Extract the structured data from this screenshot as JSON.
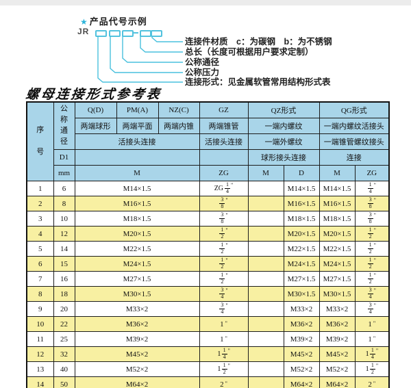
{
  "diagram": {
    "star": "★",
    "title": "产品代号示例",
    "prefix": "JR",
    "labels": [
      "连接件材质　c：为碳钢　b：为不锈钢",
      "总长（长度可根据用户要求定制）",
      "公称通径",
      "公称压力",
      "连接形式：见金属软管常用结构形式表"
    ]
  },
  "table_title": "螺母连接形式参考表",
  "colors": {
    "header_bg": "#a9d5e9",
    "row_alt_bg": "#f8f0a2",
    "accent_cyan": "#49c0dd",
    "border": "#1b1b1b"
  },
  "table": {
    "header": {
      "seq": "序号",
      "nominal_diameter": "公称通径",
      "d1": "D1",
      "mm": "mm",
      "q": "Q(D)",
      "pm": "PM(A)",
      "nz": "NZ(C)",
      "gz": "GZ",
      "qz": "QZ形式",
      "qg": "QG形式",
      "q_desc": "两端球形",
      "pm_desc": "两端平面",
      "nz_desc": "两端内锥",
      "gz_desc": "两端锥管",
      "qz_desc1": "一端内螺纹",
      "qg_desc1": "一端内螺纹活接头",
      "union_conn": "活接头连接",
      "gz_conn": "活接头连接",
      "qz_desc2": "一端外螺纹",
      "qg_desc2": "一端锥管螺纹接头",
      "qz_conn": "球形接头连接",
      "qg_conn": "连接",
      "m1": "M",
      "zg1": "ZG",
      "m2": "M",
      "d": "D",
      "m3": "M",
      "zg2": "ZG"
    },
    "rows": [
      {
        "no": "1",
        "mm": "6",
        "m": "M14×1.5",
        "gz": {
          "prefix": "ZG",
          "num": "1",
          "den": "4"
        },
        "qz_m": "",
        "qz_d": "M14×1.5",
        "qg_m": "M14×1.5",
        "qg_zg": {
          "num": "1",
          "den": "4"
        }
      },
      {
        "no": "2",
        "mm": "8",
        "m": "M16×1.5",
        "gz": {
          "num": "3",
          "den": "8"
        },
        "qz_m": "",
        "qz_d": "M16×1.5",
        "qg_m": "M16×1.5",
        "qg_zg": {
          "num": "3",
          "den": "8"
        }
      },
      {
        "no": "3",
        "mm": "10",
        "m": "M18×1.5",
        "gz": {
          "num": "3",
          "den": "8"
        },
        "qz_m": "",
        "qz_d": "M18×1.5",
        "qg_m": "M18×1.5",
        "qg_zg": {
          "num": "3",
          "den": "8"
        }
      },
      {
        "no": "4",
        "mm": "12",
        "m": "M20×1.5",
        "gz": {
          "num": "1",
          "den": "2"
        },
        "qz_m": "",
        "qz_d": "M20×1.5",
        "qg_m": "M20×1.5",
        "qg_zg": {
          "num": "1",
          "den": "2"
        }
      },
      {
        "no": "5",
        "mm": "14",
        "m": "M22×1.5",
        "gz": {
          "num": "1",
          "den": "2"
        },
        "qz_m": "",
        "qz_d": "M22×1.5",
        "qg_m": "M22×1.5",
        "qg_zg": {
          "num": "1",
          "den": "2"
        }
      },
      {
        "no": "6",
        "mm": "15",
        "m": "M24×1.5",
        "gz": {
          "num": "1",
          "den": "2"
        },
        "qz_m": "",
        "qz_d": "M24×1.5",
        "qg_m": "M24×1.5",
        "qg_zg": {
          "num": "1",
          "den": "2"
        }
      },
      {
        "no": "7",
        "mm": "16",
        "m": "M27×1.5",
        "gz": {
          "num": "1",
          "den": "2"
        },
        "qz_m": "",
        "qz_d": "M27×1.5",
        "qg_m": "M27×1.5",
        "qg_zg": {
          "num": "1",
          "den": "2"
        }
      },
      {
        "no": "8",
        "mm": "18",
        "m": "M30×1.5",
        "gz": {
          "num": "3",
          "den": "4"
        },
        "qz_m": "",
        "qz_d": "M30×1.5",
        "qg_m": "M30×1.5",
        "qg_zg": {
          "num": "3",
          "den": "4"
        }
      },
      {
        "no": "9",
        "mm": "20",
        "m": "M33×2",
        "gz": {
          "num": "3",
          "den": "4"
        },
        "qz_m": "",
        "qz_d": "M33×2",
        "qg_m": "M33×2",
        "qg_zg": {
          "num": "3",
          "den": "4"
        }
      },
      {
        "no": "10",
        "mm": "22",
        "m": "M36×2",
        "gz": {
          "whole": "1"
        },
        "qz_m": "",
        "qz_d": "M36×2",
        "qg_m": "M36×2",
        "qg_zg": {
          "whole": "1"
        }
      },
      {
        "no": "11",
        "mm": "25",
        "m": "M39×2",
        "gz": {
          "whole": "1"
        },
        "qz_m": "",
        "qz_d": "M39×2",
        "qg_m": "M39×2",
        "qg_zg": {
          "whole": "1"
        }
      },
      {
        "no": "12",
        "mm": "32",
        "m": "M45×2",
        "gz": {
          "whole": "1",
          "num": "1",
          "den": "4"
        },
        "qz_m": "",
        "qz_d": "M45×2",
        "qg_m": "M45×2",
        "qg_zg": {
          "whole": "1",
          "num": "1",
          "den": "4"
        }
      },
      {
        "no": "13",
        "mm": "40",
        "m": "M52×2",
        "gz": {
          "whole": "1",
          "num": "1",
          "den": "2"
        },
        "qz_m": "",
        "qz_d": "M52×2",
        "qg_m": "M52×2",
        "qg_zg": {
          "whole": "1",
          "num": "1",
          "den": "2"
        }
      },
      {
        "no": "14",
        "mm": "50",
        "m": "M64×2",
        "gz": {
          "whole": "2"
        },
        "qz_m": "",
        "qz_d": "M64×2",
        "qg_m": "M64×2",
        "qg_zg": {
          "whole": "2"
        }
      }
    ]
  }
}
